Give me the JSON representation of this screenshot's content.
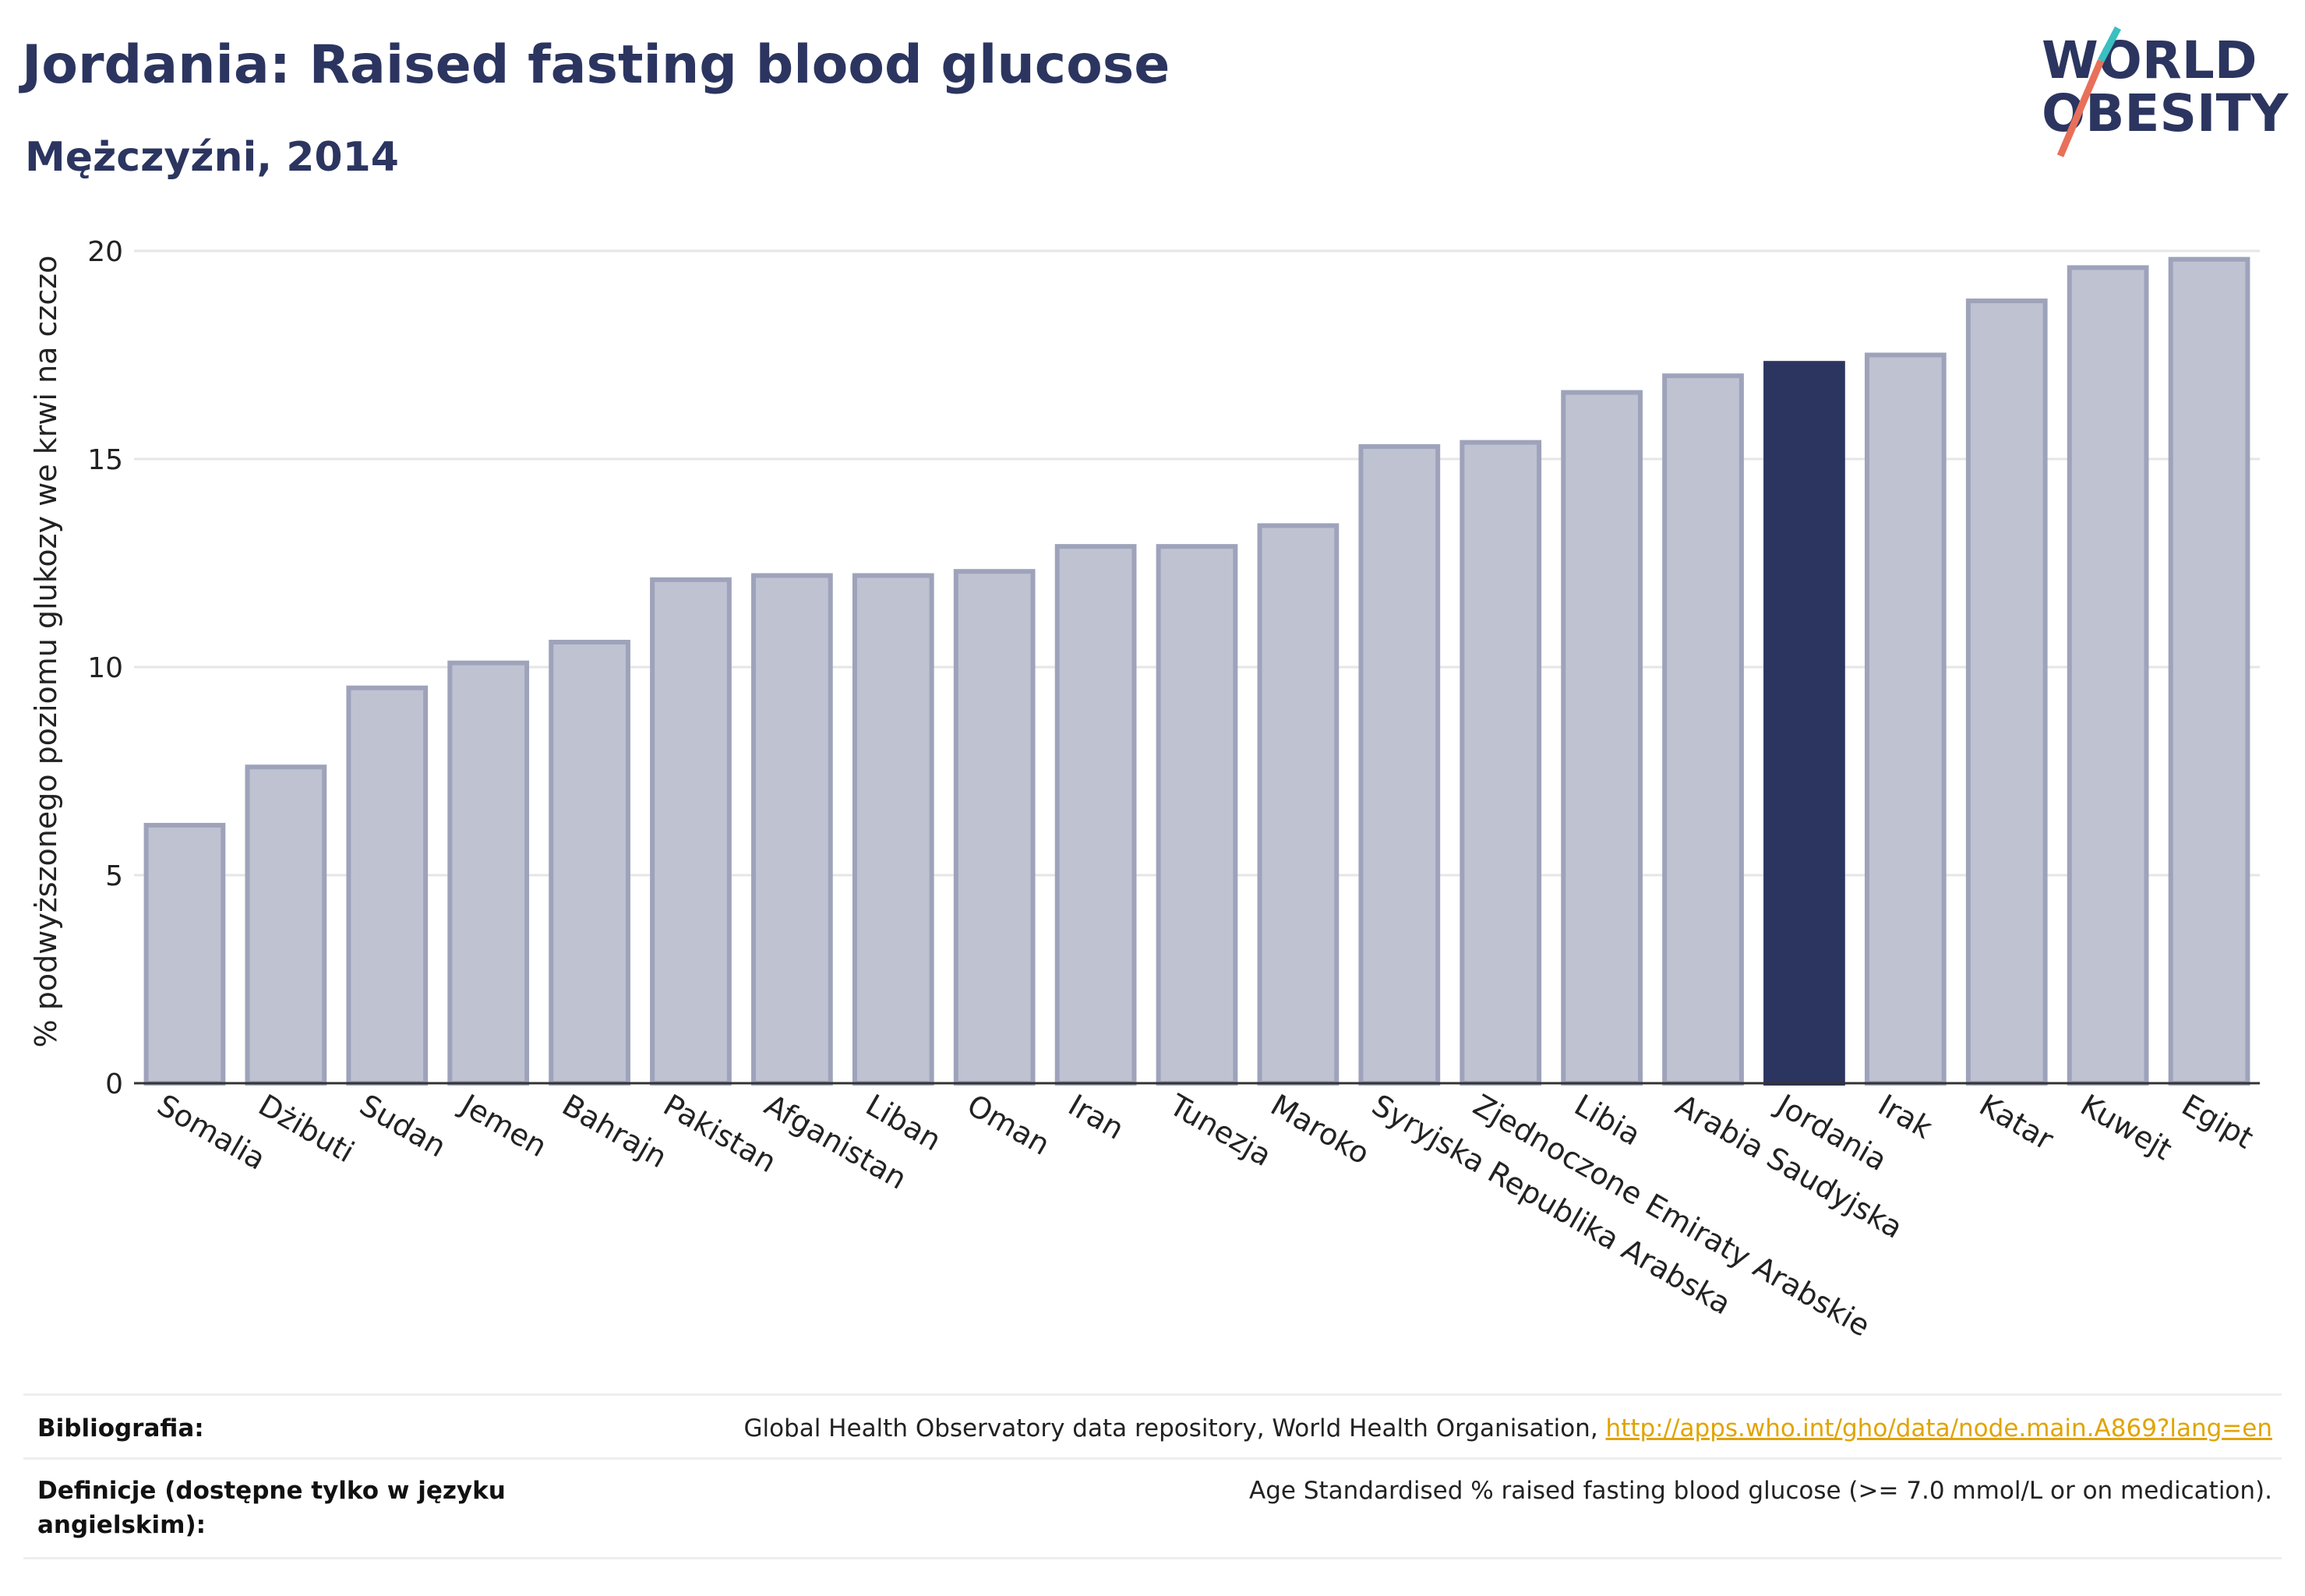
{
  "header": {
    "title": "Jordania: Raised fasting blood glucose",
    "subtitle": "Mężczyźni, 2014"
  },
  "logo": {
    "line1": "WORLD",
    "line2": "OBESITY",
    "colors": {
      "text": "#2b3560",
      "slash_top": "#3bbfbf",
      "slash_bottom": "#e8705a"
    }
  },
  "colors": {
    "bar": "#bfc2d1",
    "bar_border": "#9ea3bb",
    "highlight": "#2b3560",
    "grid": "#e6e6e6",
    "axis": "#333333"
  },
  "chart_data": {
    "type": "bar",
    "ylabel": "% podwyższonego poziomu glukozy we krwi na czczo",
    "ylim": [
      0,
      20
    ],
    "yticks": [
      0,
      5,
      10,
      15,
      20
    ],
    "highlight": "Jordania",
    "categories": [
      "Somalia",
      "Dżibuti",
      "Sudan",
      "Jemen",
      "Bahrajn",
      "Pakistan",
      "Afganistan",
      "Liban",
      "Oman",
      "Iran",
      "Tunezja",
      "Maroko",
      "Syryjska Republika Arabska",
      "Zjednoczone Emiraty Arabskie",
      "Libia",
      "Arabia Saudyjska",
      "Jordania",
      "Irak",
      "Katar",
      "Kuwejt",
      "Egipt"
    ],
    "values": [
      6.2,
      7.6,
      9.5,
      10.1,
      10.6,
      12.1,
      12.2,
      12.2,
      12.3,
      12.9,
      12.9,
      13.4,
      15.3,
      15.4,
      16.6,
      17.0,
      17.3,
      17.5,
      18.8,
      19.6,
      19.8
    ]
  },
  "footer": {
    "bibliography_label": "Bibliografia:",
    "bibliography_text": "Global Health Observatory data repository, World Health Organisation, ",
    "bibliography_link": "http://apps.who.int/gho/data/node.main.A869?lang=en",
    "definitions_label_line1": "Definicje (dostępne tylko w języku",
    "definitions_label_line2": "angielskim):",
    "definitions_text": "Age Standardised % raised fasting blood glucose (>= 7.0 mmol/L or on medication)."
  }
}
